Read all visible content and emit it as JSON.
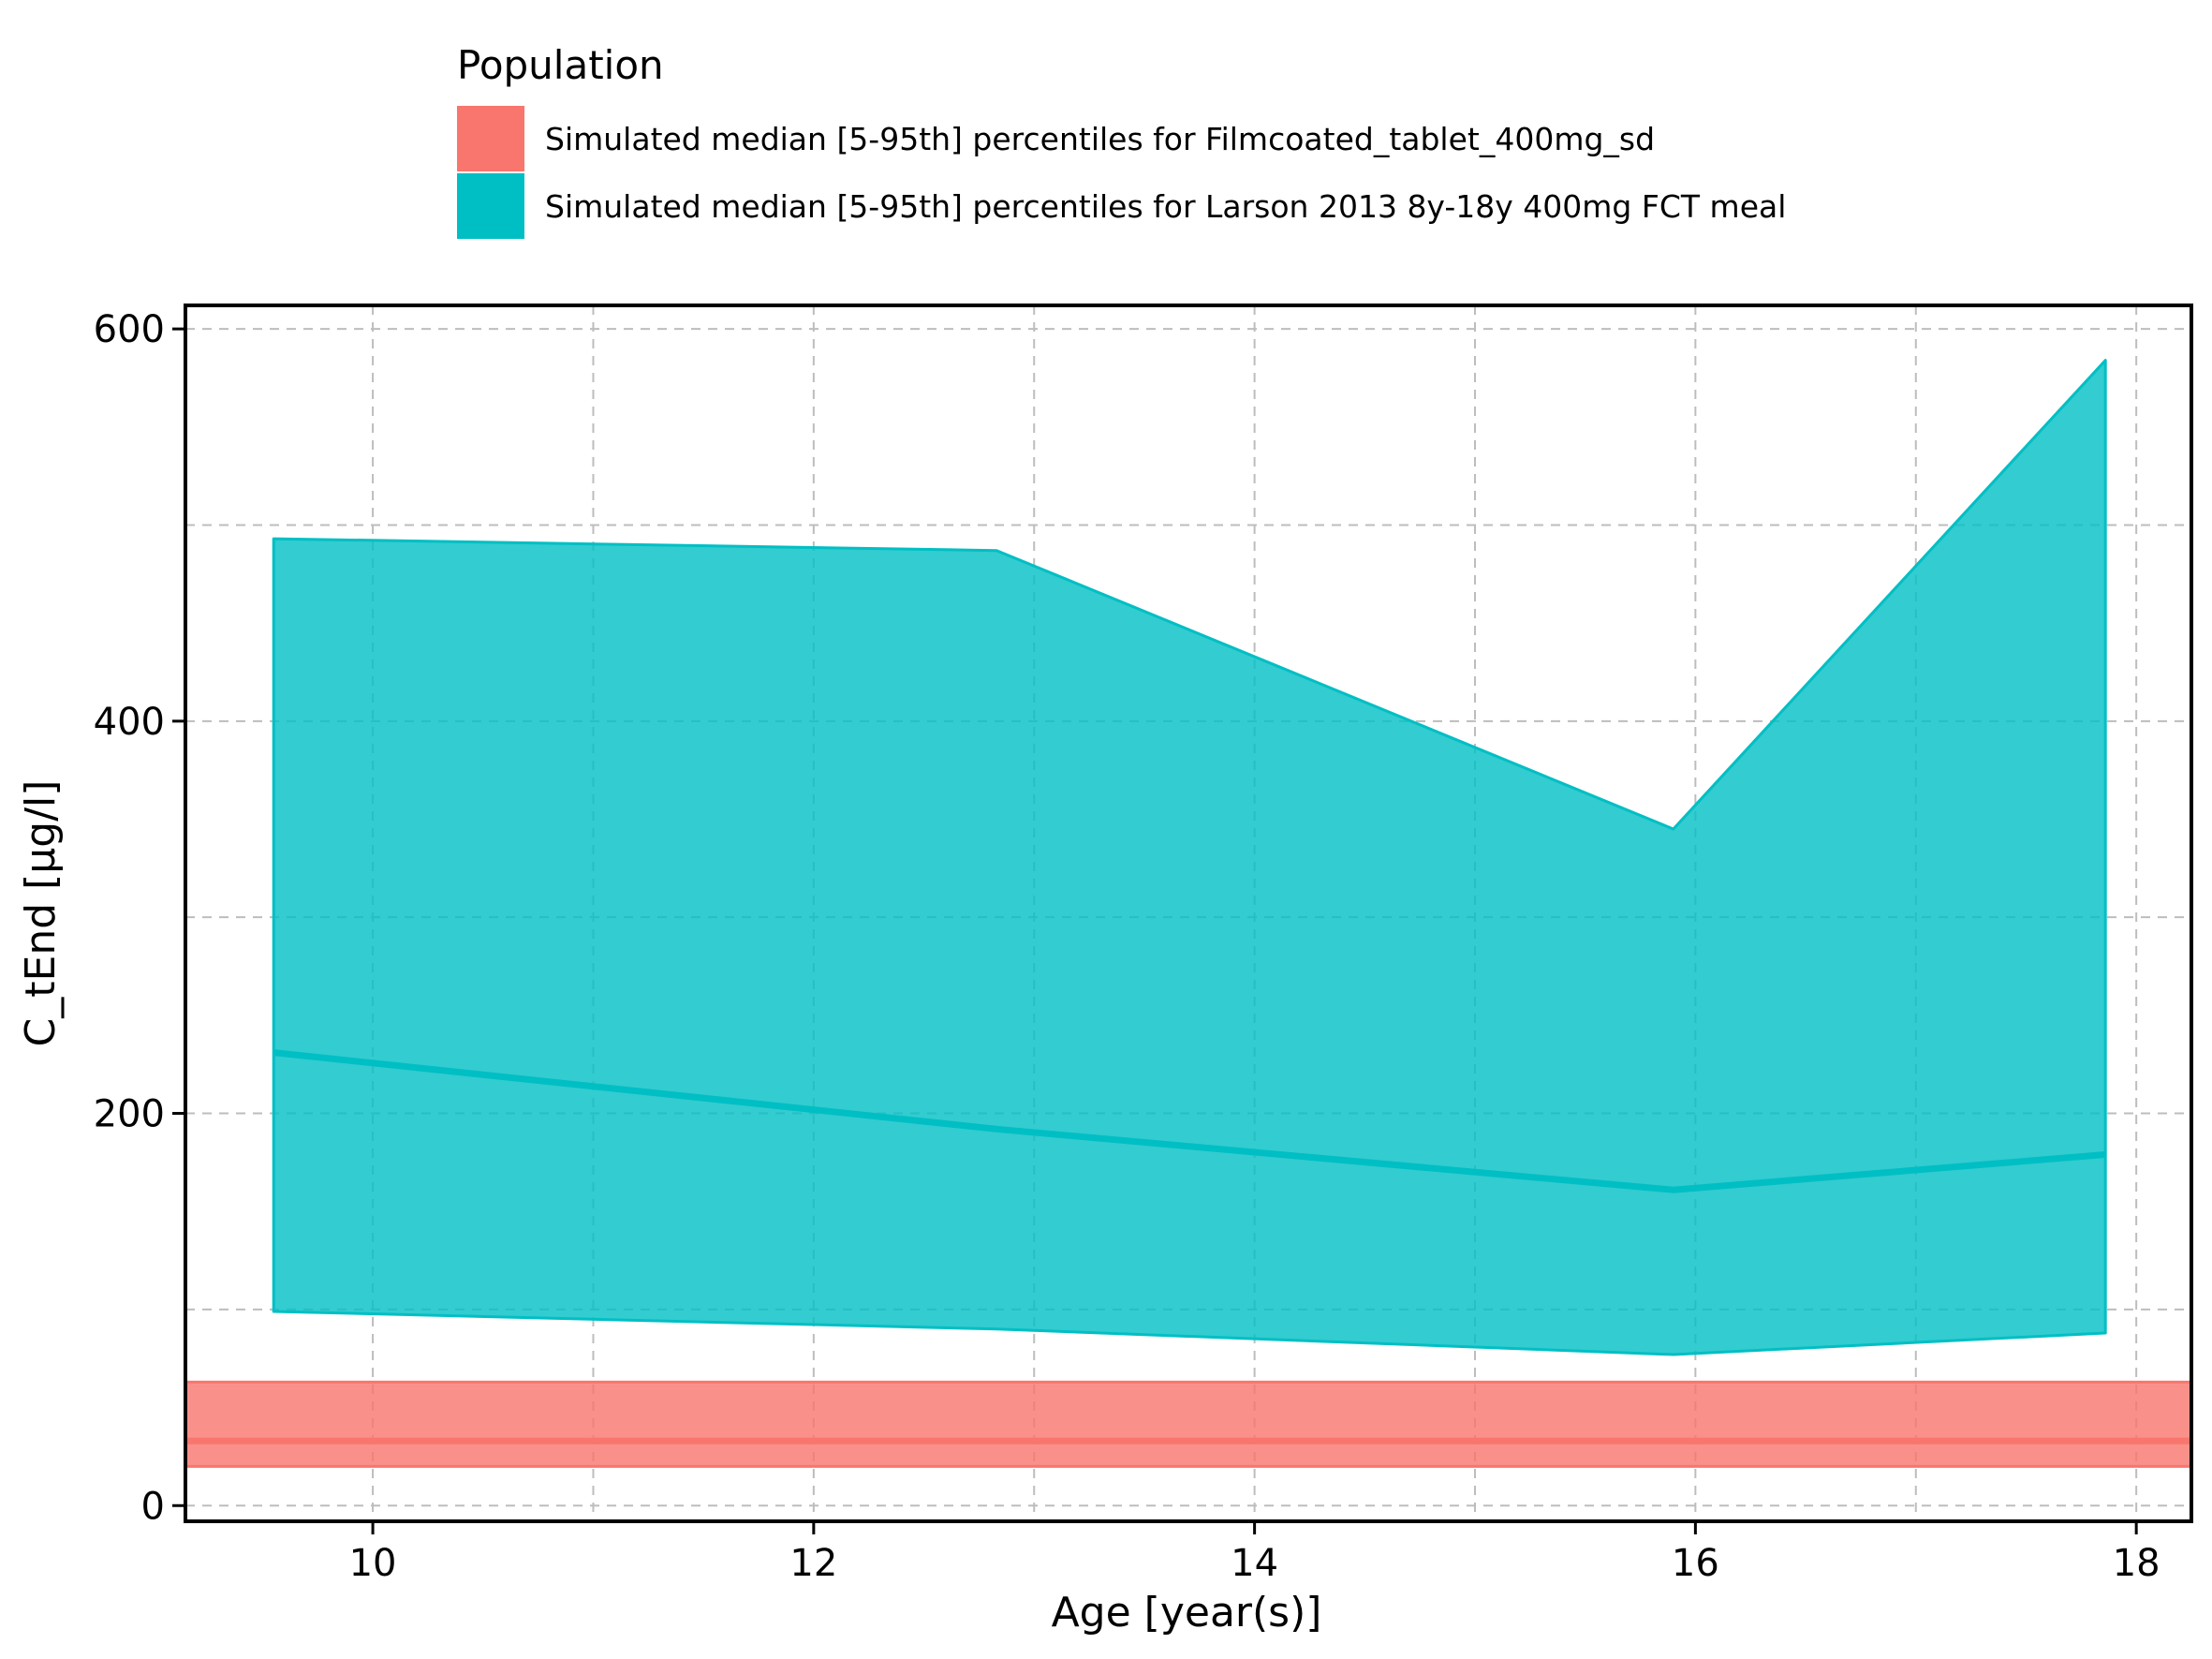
{
  "chart_data": {
    "type": "area",
    "title": "",
    "xlabel": "Age [year(s)]",
    "ylabel": "C_tEnd [µg/l]",
    "xlim": [
      9.15,
      18.25
    ],
    "ylim": [
      -8,
      612
    ],
    "xticks": [
      10,
      12,
      14,
      16,
      18
    ],
    "xticks_minor": [
      11,
      13,
      15,
      17
    ],
    "yticks": [
      0,
      200,
      400,
      600
    ],
    "yticks_minor": [
      100,
      300,
      500
    ],
    "grid": true,
    "legend": {
      "title": "Population",
      "placement": "top"
    },
    "series": [
      {
        "name": "Simulated median [5-95th] percentiles for Filmcoated_tablet_400mg_sd",
        "color": "#F8766D",
        "span": "full",
        "median": 33,
        "lower": 20,
        "upper": 63
      },
      {
        "name": "Simulated median [5-95th] percentiles for Larson 2013 8y-18y 400mg FCT meal",
        "color": "#00BFC4",
        "span": "data",
        "x": [
          9.55,
          12.83,
          15.9,
          17.86
        ],
        "median": [
          231,
          192,
          161,
          179
        ],
        "lower": [
          99,
          90,
          77,
          88
        ],
        "upper": [
          493,
          487,
          345,
          584
        ]
      }
    ]
  }
}
